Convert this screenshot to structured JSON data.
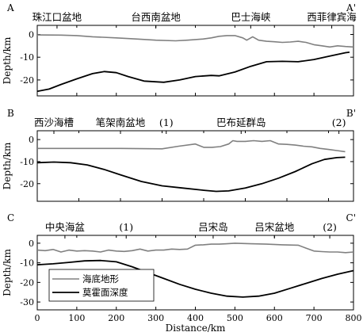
{
  "chart_data": {
    "type": "line",
    "xlabel": "Distance/km",
    "x_ticks": [
      0,
      100,
      200,
      300,
      400,
      500,
      600,
      700,
      800
    ],
    "legend": {
      "placement": "bottom-left of bottom panel",
      "items": [
        {
          "label": "海底地形",
          "color": "#808080"
        },
        {
          "label": "莫霍面深度",
          "color": "#000000"
        }
      ]
    },
    "panels": [
      {
        "id": "A",
        "start_label": "A",
        "end_label": "A'",
        "ylabel": "Depth/km",
        "y_ticks": [
          0,
          -10,
          -20
        ],
        "ylim": [
          -27,
          4
        ],
        "xlim": [
          0,
          800
        ],
        "place_labels": [
          {
            "text": "珠江口盆地",
            "x": 50
          },
          {
            "text": "台西南盆地",
            "x": 300
          },
          {
            "text": "巴士海峡",
            "x": 540
          },
          {
            "text": "西菲律宾海",
            "x": 745
          }
        ],
        "series": [
          {
            "name": "海底地形",
            "color": "#808080",
            "x": [
              0,
              60,
              100,
              140,
              200,
              250,
              300,
              350,
              380,
              420,
              440,
              460,
              480,
              500,
              520,
              530,
              545,
              560,
              580,
              600,
              620,
              640,
              660,
              680,
              700,
              720,
              740,
              760,
              780,
              800
            ],
            "y": [
              -0.2,
              -0.3,
              -0.5,
              -1.0,
              -1.5,
              -2.0,
              -2.5,
              -2.8,
              -2.5,
              -2.0,
              -1.5,
              -0.8,
              -0.5,
              -0.5,
              -1.5,
              -2.5,
              -1.0,
              -2.5,
              -3.0,
              -3.2,
              -3.5,
              -3.3,
              -3.0,
              -3.5,
              -4.5,
              -5.0,
              -5.5,
              -5.0,
              -5.3,
              -5.5
            ]
          },
          {
            "name": "莫霍面深度",
            "color": "#000000",
            "x": [
              0,
              30,
              60,
              100,
              140,
              170,
              200,
              230,
              270,
              320,
              360,
              400,
              440,
              460,
              500,
              540,
              580,
              620,
              660,
              700,
              740,
              780,
              790
            ],
            "y": [
              -25,
              -24,
              -22,
              -19.5,
              -17.2,
              -16.3,
              -16.8,
              -18.5,
              -20.5,
              -21,
              -20,
              -18.5,
              -18,
              -18.2,
              -16.5,
              -14,
              -12,
              -11.8,
              -12,
              -11,
              -9.5,
              -8,
              -7.8
            ]
          }
        ]
      },
      {
        "id": "B",
        "start_label": "B",
        "end_label": "B'",
        "ylabel": "Depth/km",
        "y_ticks": [
          0,
          -10,
          -20
        ],
        "ylim": [
          -28,
          4
        ],
        "xlim": [
          0,
          760
        ],
        "place_labels": [
          {
            "text": "西沙海槽",
            "x": 40
          },
          {
            "text": "笔架南盆地",
            "x": 200
          },
          {
            "text": "(1)",
            "x": 310
          },
          {
            "text": "巴布延群岛",
            "x": 490
          },
          {
            "text": "(2)",
            "x": 725
          }
        ],
        "series": [
          {
            "name": "海底地形",
            "color": "#808080",
            "x": [
              0,
              100,
              200,
              300,
              340,
              380,
              400,
              420,
              440,
              460,
              470,
              480,
              500,
              520,
              540,
              560,
              580,
              600,
              620,
              640,
              660,
              680,
              700,
              720,
              740
            ],
            "y": [
              -4,
              -4,
              -4,
              -4.2,
              -3,
              -2,
              -3.5,
              -3.5,
              -3.2,
              -2,
              -0.5,
              -0.8,
              -0.8,
              -0.5,
              -0.8,
              -0.5,
              -2,
              -2.2,
              -2.5,
              -3,
              -3.3,
              -4,
              -4.5,
              -5,
              -5.5
            ]
          },
          {
            "name": "莫霍面深度",
            "color": "#000000",
            "x": [
              0,
              40,
              80,
              120,
              160,
              200,
              250,
              300,
              350,
              400,
              430,
              460,
              500,
              540,
              580,
              620,
              660,
              690,
              720,
              740
            ],
            "y": [
              -10.5,
              -10.2,
              -10.5,
              -11.5,
              -13.5,
              -16,
              -19,
              -21,
              -22,
              -23,
              -23.5,
              -23.3,
              -22,
              -20,
              -17.5,
              -14.5,
              -11,
              -9,
              -8.2,
              -8
            ]
          }
        ]
      },
      {
        "id": "C",
        "start_label": "C",
        "end_label": "C'",
        "ylabel": "Depth/km",
        "y_ticks": [
          0,
          -10,
          -20,
          -30
        ],
        "ylim": [
          -34,
          4
        ],
        "xlim": [
          0,
          800
        ],
        "place_labels": [
          {
            "text": "中央海盆",
            "x": 70
          },
          {
            "text": "(1)",
            "x": 225
          },
          {
            "text": "吕宋岛",
            "x": 445
          },
          {
            "text": "吕宋盆地",
            "x": 600
          },
          {
            "text": "(2)",
            "x": 740
          }
        ],
        "series": [
          {
            "name": "海底地形",
            "color": "#808080",
            "x": [
              0,
              20,
              40,
              60,
              80,
              100,
              120,
              140,
              160,
              180,
              200,
              220,
              240,
              260,
              280,
              300,
              320,
              340,
              360,
              380,
              400,
              420,
              440,
              460,
              480,
              500,
              540,
              580,
              620,
              660,
              680,
              700,
              720,
              740,
              760,
              780,
              800
            ],
            "y": [
              -3.5,
              -3.8,
              -3.2,
              -4.5,
              -3.5,
              -4,
              -3.8,
              -4,
              -4.5,
              -3.5,
              -4,
              -4.2,
              -3.8,
              -3,
              -4,
              -3.5,
              -3.5,
              -3,
              -3.2,
              -3,
              -1,
              -0.8,
              -0.5,
              -0.5,
              -0.3,
              0,
              -0.3,
              -0.5,
              -0.8,
              -1,
              -2.5,
              -4,
              -4.3,
              -4.5,
              -4.5,
              -4.8,
              -4.5
            ]
          },
          {
            "name": "莫霍面深度",
            "color": "#000000",
            "x": [
              0,
              40,
              80,
              120,
              160,
              200,
              240,
              280,
              320,
              360,
              400,
              440,
              480,
              520,
              560,
              600,
              640,
              680,
              720,
              760,
              800
            ],
            "y": [
              -11,
              -10.5,
              -9.8,
              -9,
              -8.8,
              -9.5,
              -12,
              -15,
              -18,
              -21,
              -23.5,
              -25.5,
              -27,
              -27.5,
              -27,
              -25.5,
              -23,
              -20.5,
              -18,
              -15.8,
              -14
            ]
          }
        ]
      }
    ]
  }
}
